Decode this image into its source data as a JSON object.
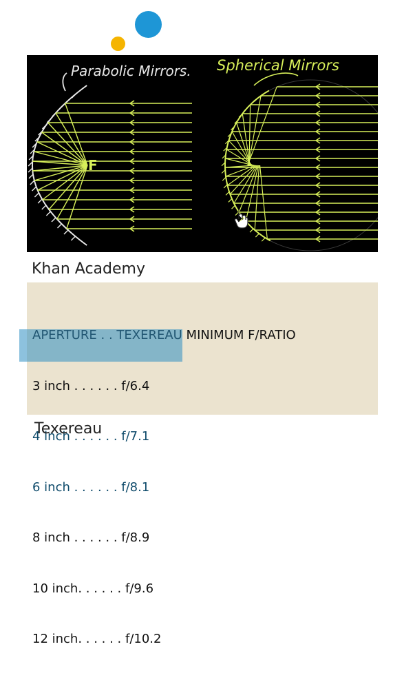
{
  "colors": {
    "accent_blue": "#1e96d6",
    "accent_yellow": "#f5b400",
    "chalk_yellow": "#d8f05a",
    "chalk_white": "#e8e8e8",
    "table_bg": "#ebe3cf",
    "highlight": "#2f8fc3"
  },
  "video": {
    "label_left": "Parabolic Mirrors.",
    "label_right": "Spherical Mirrors",
    "focus_label": "F",
    "cursor_icon": "hand-pointer-icon"
  },
  "captions": {
    "video_source": "Khan Academy",
    "table_source": "Texereau"
  },
  "table": {
    "header": "APERTURE . . TEXEREAU MINIMUM F/RATIO",
    "rows": [
      {
        "text": "3 inch . . . . . . f/6.4",
        "highlighted": false
      },
      {
        "text": "4 inch . . . . . . f/7.1",
        "highlighted": true
      },
      {
        "text": "6 inch . . . . . . f/8.1",
        "highlighted": true
      },
      {
        "text": "8 inch . . . . . . f/8.9",
        "highlighted": false
      },
      {
        "text": "10 inch. . . . . . f/9.6",
        "highlighted": false
      },
      {
        "text": "12 inch. . . . . . f/10.2",
        "highlighted": false
      }
    ]
  }
}
